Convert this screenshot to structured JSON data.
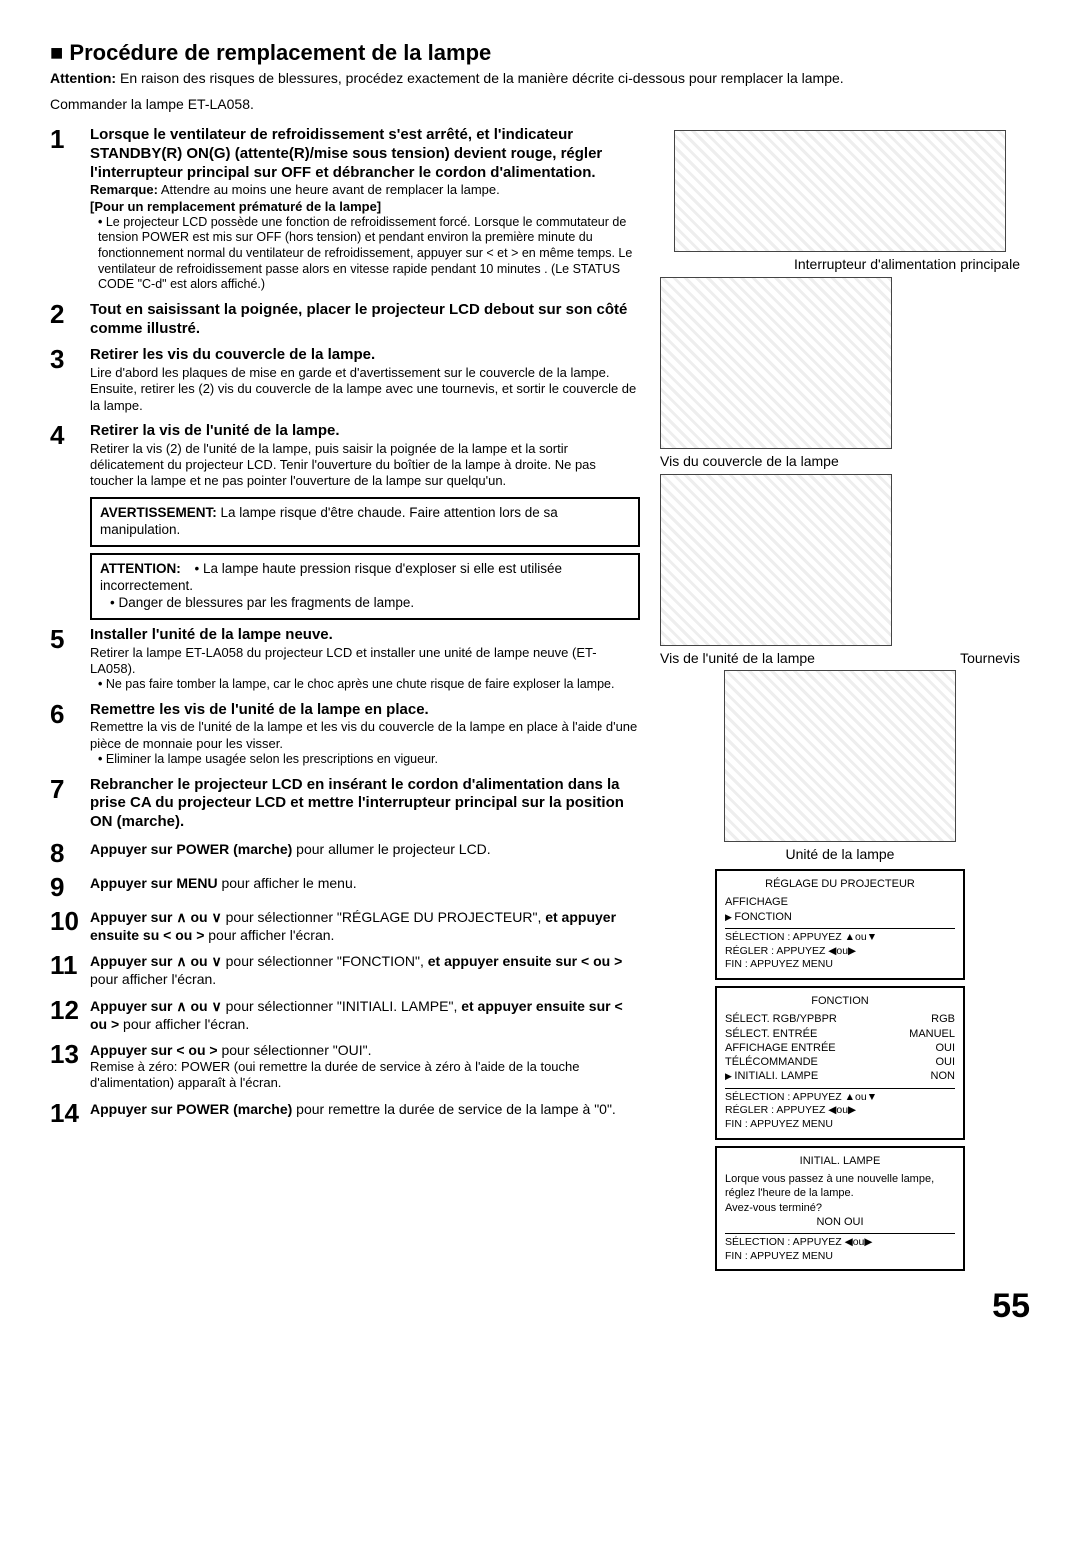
{
  "title": "Procédure de remplacement de la lampe",
  "attention_label": "Attention:",
  "attention": "En raison des risques de blessures, procédez exactement de la manière décrite ci-dessous pour remplacer la lampe.",
  "order": "Commander la lampe ET-LA058.",
  "steps": {
    "1": {
      "head": "Lorsque le ventilateur de refroidissement s'est arrêté, et l'indicateur STANDBY(R) ON(G) (attente(R)/mise sous tension) devient rouge, régler l'interrupteur principal sur OFF et débrancher le cordon d'alimentation.",
      "remark_label": "Remarque:",
      "remark": "Attendre au moins une heure avant de remplacer la lampe.",
      "sub_label": "[Pour un remplacement prématuré de la lampe]",
      "sub1": "Le projecteur LCD possède une fonction de refroidissement forcé. Lorsque le commutateur de tension POWER est mis sur OFF (hors tension) et pendant environ la première minute du fonctionnement normal du ventilateur de refroidissement, appuyer sur < et > en même temps. Le ventilateur de refroidissement passe alors en vitesse rapide pendant 10 minutes . (Le STATUS CODE \"C-d\" est alors affiché.)"
    },
    "2": {
      "head": "Tout en saisissant la poignée, placer le projecteur LCD debout sur son côté comme illustré."
    },
    "3": {
      "head": "Retirer les vis du couvercle de la lampe.",
      "body": "Lire d'abord les plaques de mise en garde et d'avertissement sur le couvercle de la lampe. Ensuite, retirer les (2) vis du couvercle de la lampe avec une tournevis, et sortir le couvercle de la lampe."
    },
    "4": {
      "head": "Retirer la vis de l'unité de la lampe.",
      "body": "Retirer la vis (2) de l'unité de la lampe, puis saisir la poignée de la lampe et la sortir délicatement du projecteur LCD. Tenir l'ouverture du boîtier de la lampe à droite. Ne pas toucher la lampe et ne pas pointer l'ouverture de la lampe sur quelqu'un."
    },
    "5": {
      "head": "Installer l'unité de la lampe neuve.",
      "body": "Retirer la lampe ET-LA058 du projecteur LCD et installer une unité de lampe neuve (ET-LA058).",
      "sub1": "Ne pas faire tomber la lampe, car le choc après une chute risque de faire exploser la lampe."
    },
    "6": {
      "head": "Remettre les vis de l'unité de la lampe en place.",
      "body": "Remettre la vis de l'unité de la lampe et les vis du couvercle de la lampe en place à l'aide d'une pièce de monnaie pour les visser.",
      "sub1": "Eliminer la lampe usagée selon les prescriptions en vigueur."
    },
    "7": {
      "head": "Rebrancher le projecteur LCD en insérant le cordon d'alimentation dans la prise CA du projecteur LCD et mettre l'interrupteur principal sur la position ON (marche)."
    },
    "8": {
      "head": "Appuyer sur POWER (marche)",
      "after": " pour allumer le projecteur LCD."
    },
    "9": {
      "head": "Appuyer sur MENU",
      "after": " pour afficher le menu."
    },
    "10": {
      "head_a": "Appuyer sur ∧ ou ∨",
      "mid": " pour sélectionner \"RÉGLAGE DU PROJECTEUR\", ",
      "head_b": "et appuyer ensuite su < ou >",
      "after": " pour afficher l'écran."
    },
    "11": {
      "head_a": "Appuyer sur ∧ ou ∨",
      "mid": " pour sélectionner \"FONCTION\", ",
      "head_b": "et appuyer ensuite sur < ou >",
      "after": " pour afficher l'écran."
    },
    "12": {
      "head_a": "Appuyer sur ∧ ou ∨",
      "mid": " pour sélectionner \"INITIALI. LAMPE\", ",
      "head_b": "et appuyer ensuite sur < ou >",
      "after": " pour afficher l'écran."
    },
    "13": {
      "head": "Appuyer sur < ou >",
      "after": " pour sélectionner \"OUI\".",
      "body": "Remise à zéro: POWER (oui remettre la durée de service à zéro à l'aide de la touche d'alimentation) apparaît à l'écran."
    },
    "14": {
      "head": "Appuyer sur POWER (marche)",
      "after": " pour remettre la durée de service de la lampe à \"0\"."
    }
  },
  "warnbox": {
    "label": "AVERTISSEMENT:",
    "text": "La lampe risque d'être chaude. Faire attention lors de sa manipulation."
  },
  "attbox": {
    "label": "ATTENTION:",
    "b1": "La lampe haute pression risque d'exploser si elle est utilisée incorrectement.",
    "b2": "Danger de blessures par les fragments de lampe."
  },
  "labels": {
    "switch": "Interrupteur d'alimentation principale",
    "cover_screws": "Vis du couvercle de la lampe",
    "unit_screw": "Vis de l'unité de la lampe",
    "screwdriver": "Tournevis",
    "lamp_unit": "Unité de la lampe"
  },
  "menu1": {
    "title": "RÉGLAGE DU PROJECTEUR",
    "items": [
      "AFFICHAGE",
      "FONCTION"
    ],
    "foot": [
      "SÉLECTION : APPUYEZ ▲ou▼",
      "RÉGLER : APPUYEZ ◀ou▶",
      "FIN : APPUYEZ MENU"
    ]
  },
  "menu2": {
    "title": "FONCTION",
    "rows": [
      [
        "SÉLECT. RGB/YPBPR",
        "RGB"
      ],
      [
        "SÉLECT. ENTRÉE",
        "MANUEL"
      ],
      [
        "AFFICHAGE ENTRÉE",
        "OUI"
      ],
      [
        "TÉLÉCOMMANDE",
        "OUI"
      ],
      [
        "INITIALI. LAMPE",
        "NON"
      ]
    ],
    "foot": [
      "SÉLECTION : APPUYEZ ▲ou▼",
      "RÉGLER : APPUYEZ ◀ou▶",
      "FIN : APPUYEZ MENU"
    ]
  },
  "menu3": {
    "title": "INITIAL. LAMPE",
    "line1": "Lorque vous passez à une nouvelle lampe, réglez l'heure de la lampe.",
    "line2": "Avez-vous terminé?",
    "opts": "NON    OUI",
    "foot": [
      "SÉLECTION : APPUYEZ ◀ou▶",
      "FIN : APPUYEZ MENU"
    ]
  },
  "pagenum": "55"
}
